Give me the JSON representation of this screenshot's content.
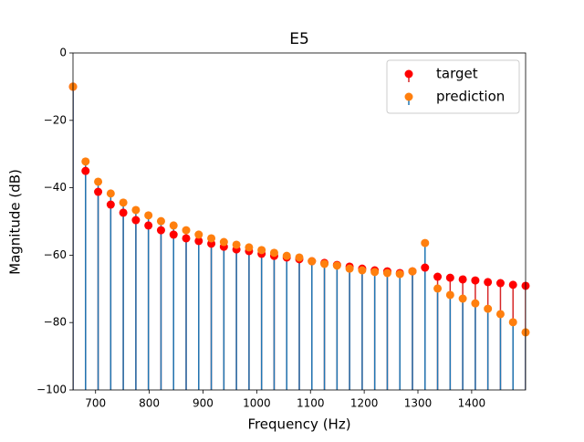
{
  "chart_data": {
    "type": "stem",
    "title": "E5",
    "x_label": "Frequency (Hz)",
    "y_label": "Magnitude (dB)",
    "x": [
      658,
      681.4,
      704.8,
      728.2,
      751.6,
      775,
      798.4,
      821.8,
      845.2,
      868.6,
      892,
      915.4,
      938.8,
      962.2,
      985.6,
      1009,
      1032.4,
      1055.8,
      1079.2,
      1102.6,
      1126,
      1149.4,
      1172.8,
      1196.2,
      1219.6,
      1243,
      1266.4,
      1289.8,
      1313.2,
      1336.6,
      1360,
      1383.4,
      1406.8,
      1430.2,
      1453.6,
      1477,
      1500.4
    ],
    "series": [
      {
        "name": "target",
        "color": "#ff0000",
        "stem_color": "#d62728",
        "values": [
          -10,
          -35.0,
          -41.2,
          -45.0,
          -47.4,
          -49.6,
          -51.2,
          -52.6,
          -53.9,
          -55.0,
          -55.8,
          -56.6,
          -57.5,
          -58.3,
          -58.8,
          -59.6,
          -60.2,
          -60.7,
          -61.2,
          -61.8,
          -62.3,
          -62.9,
          -63.4,
          -64.0,
          -64.5,
          -64.8,
          -65.3,
          -64.8,
          -63.7,
          -66.4,
          -66.7,
          -67.2,
          -67.5,
          -68.0,
          -68.3,
          -68.8,
          -69.1
        ]
      },
      {
        "name": "prediction",
        "color": "#ff7f0e",
        "stem_color": "#1f77b4",
        "values": [
          -10,
          -32.2,
          -38.2,
          -41.7,
          -44.4,
          -46.6,
          -48.2,
          -49.9,
          -51.2,
          -52.6,
          -53.9,
          -55.0,
          -56.1,
          -56.9,
          -57.7,
          -58.5,
          -59.3,
          -60.2,
          -60.7,
          -61.8,
          -62.6,
          -63.1,
          -64.0,
          -64.5,
          -65.0,
          -65.3,
          -65.6,
          -64.8,
          -56.4,
          -69.9,
          -71.8,
          -72.9,
          -74.3,
          -75.9,
          -77.5,
          -79.9,
          -82.9
        ]
      }
    ],
    "xlim": [
      658,
      1500.4
    ],
    "ylim": [
      -100,
      0
    ],
    "xticks": [
      700,
      800,
      900,
      1000,
      1100,
      1200,
      1300,
      1400
    ],
    "yticks": [
      {
        "value": -100,
        "label": "−100"
      },
      {
        "value": -80,
        "label": "−80"
      },
      {
        "value": -60,
        "label": "−60"
      },
      {
        "value": -40,
        "label": "−40"
      },
      {
        "value": -20,
        "label": "−20"
      },
      0
    ],
    "legend": "upper right",
    "grid": false
  }
}
